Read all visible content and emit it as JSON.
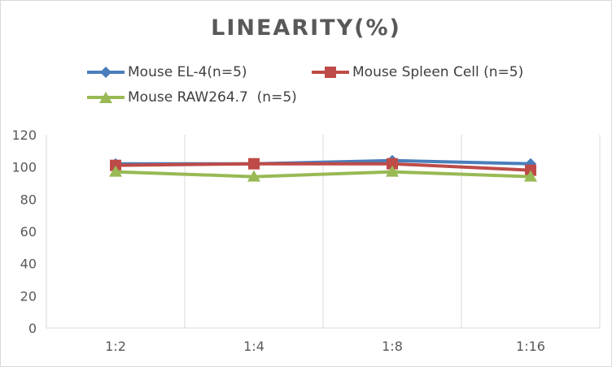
{
  "chart_data": {
    "type": "line",
    "title": "LINEARITY(%)",
    "categories": [
      "1:2",
      "1:4",
      "1:8",
      "1:16"
    ],
    "series": [
      {
        "name": "Mouse EL-4(n=5)",
        "values": [
          102,
          102,
          104,
          102
        ],
        "color": "#4a7ebb",
        "marker": "diamond"
      },
      {
        "name": "Mouse Spleen Cell (n=5)",
        "values": [
          101,
          102,
          102,
          98
        ],
        "color": "#be4b48",
        "marker": "square"
      },
      {
        "name": "Mouse RAW264.7  (n=5)",
        "values": [
          97,
          94,
          97,
          94
        ],
        "color": "#98b954",
        "marker": "triangle"
      }
    ],
    "ylim": [
      0,
      120
    ],
    "yticks": [
      "0",
      "20",
      "40",
      "60",
      "80",
      "100",
      "120"
    ],
    "grid": "vertical",
    "legend": "top",
    "xlabel": "",
    "ylabel": ""
  }
}
